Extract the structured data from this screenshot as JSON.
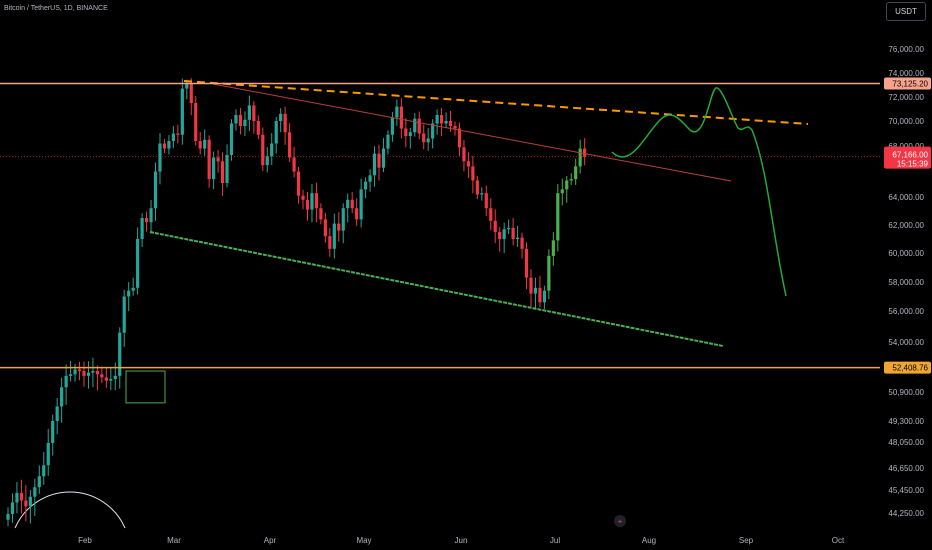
{
  "header": {
    "symbol": "Bitcoin / TetherUS, 1D, BINANCE",
    "currency": "USDT"
  },
  "colors": {
    "bull": "#26a69a",
    "bull_bright": "#4caf50",
    "bear": "#f23645",
    "resistance": "#f7a28b",
    "support": "#f0a630",
    "dashed_trend": "#ff9800",
    "channel_top": "#b8433a",
    "channel_bottom": "#4caf50",
    "projection": "#22ab35",
    "price_tag": "#f23645"
  },
  "chart_data": {
    "type": "candlestick",
    "y_axis": {
      "ticks": [
        "76,000.00",
        "74,000.00",
        "72,000.00",
        "70,000.00",
        "68,000.00",
        "64,000.00",
        "62,000.00",
        "60,000.00",
        "58,000.00",
        "56,000.00",
        "54,000.00",
        "50,900.00",
        "49,300.00",
        "48,050.00",
        "46,650.00",
        "45,450.00",
        "44,250.00"
      ]
    },
    "x_axis": {
      "ticks": [
        "Feb",
        "Mar",
        "Apr",
        "May",
        "Jun",
        "Jul",
        "Aug",
        "Sep",
        "Oct"
      ]
    },
    "price_labels": {
      "resistance": "73,125.20",
      "support": "52,408.76",
      "current_price": "67,166.00",
      "countdown": "15:15:39"
    },
    "candles_close": [
      44200,
      44800,
      45300,
      44900,
      44600,
      45100,
      45600,
      46200,
      46800,
      48000,
      49300,
      50100,
      51200,
      51900,
      52000,
      52300,
      52200,
      51900,
      52100,
      52200,
      52000,
      51800,
      51600,
      51700,
      51900,
      54600,
      57000,
      57400,
      57600,
      61000,
      62500,
      62200,
      63200,
      66000,
      68200,
      67800,
      68400,
      69000,
      68900,
      72700,
      73100,
      71500,
      68400,
      67800,
      68500,
      65400,
      67100,
      66800,
      65100,
      67300,
      69800,
      70500,
      69600,
      70100,
      71300,
      70000,
      68900,
      66500,
      67200,
      68200,
      70000,
      70600,
      69100,
      67100,
      66000,
      64100,
      63800,
      63100,
      64300,
      63200,
      62400,
      61200,
      60300,
      62100,
      61600,
      63200,
      63800,
      63200,
      62400,
      64600,
      65200,
      65700,
      67400,
      66300,
      67800,
      68900,
      70300,
      71200,
      69400,
      68800,
      69100,
      70200,
      69000,
      68300,
      68600,
      69800,
      70500,
      69800,
      70000,
      69600,
      69400,
      67900,
      66800,
      66400,
      65300,
      64200,
      64300,
      63200,
      62300,
      61500,
      61000,
      61700,
      61800,
      61000,
      61100,
      60300,
      58300,
      57200,
      57600,
      56600,
      57400,
      59800,
      60900,
      64300,
      64600,
      65300,
      65400,
      66400,
      67800,
      67166
    ]
  },
  "annotations": {
    "gamepad_glyph": "⌖"
  }
}
